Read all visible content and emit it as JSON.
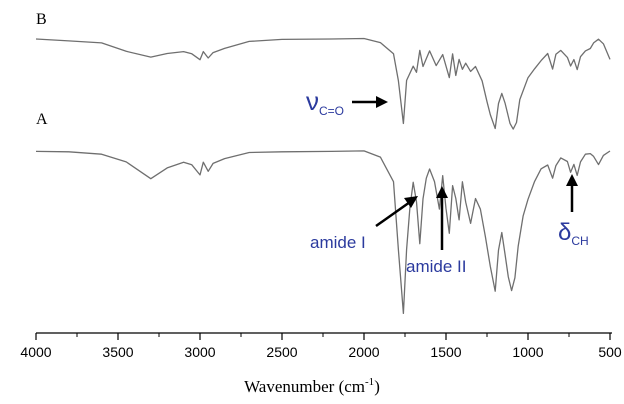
{
  "chart_data": {
    "type": "line",
    "xlabel": "Wavenumber (cm",
    "xlabel_sup": "-1",
    "xlabel_close": ")",
    "ylabel": "",
    "xlim": [
      4000,
      500
    ],
    "x_ticks": [
      4000,
      3500,
      3000,
      2500,
      2000,
      1500,
      1000,
      500
    ],
    "grid": false,
    "series": [
      {
        "name": "B",
        "points": [
          [
            4000,
            0.02
          ],
          [
            3800,
            0.03
          ],
          [
            3600,
            0.05
          ],
          [
            3450,
            0.1
          ],
          [
            3300,
            0.14
          ],
          [
            3200,
            0.12
          ],
          [
            3100,
            0.1
          ],
          [
            3050,
            0.12
          ],
          [
            3000,
            0.16
          ],
          [
            2980,
            0.1
          ],
          [
            2950,
            0.15
          ],
          [
            2920,
            0.11
          ],
          [
            2850,
            0.08
          ],
          [
            2700,
            0.04
          ],
          [
            2500,
            0.02
          ],
          [
            2200,
            0.02
          ],
          [
            2000,
            0.02
          ],
          [
            1900,
            0.04
          ],
          [
            1820,
            0.12
          ],
          [
            1790,
            0.3
          ],
          [
            1760,
            0.58
          ],
          [
            1740,
            0.3
          ],
          [
            1700,
            0.2
          ],
          [
            1680,
            0.24
          ],
          [
            1660,
            0.1
          ],
          [
            1640,
            0.2
          ],
          [
            1600,
            0.1
          ],
          [
            1560,
            0.2
          ],
          [
            1520,
            0.12
          ],
          [
            1480,
            0.28
          ],
          [
            1460,
            0.12
          ],
          [
            1440,
            0.26
          ],
          [
            1420,
            0.16
          ],
          [
            1400,
            0.22
          ],
          [
            1380,
            0.18
          ],
          [
            1350,
            0.24
          ],
          [
            1320,
            0.2
          ],
          [
            1280,
            0.3
          ],
          [
            1250,
            0.44
          ],
          [
            1230,
            0.52
          ],
          [
            1200,
            0.62
          ],
          [
            1180,
            0.45
          ],
          [
            1160,
            0.38
          ],
          [
            1140,
            0.45
          ],
          [
            1110,
            0.58
          ],
          [
            1090,
            0.62
          ],
          [
            1070,
            0.58
          ],
          [
            1050,
            0.42
          ],
          [
            1000,
            0.28
          ],
          [
            960,
            0.22
          ],
          [
            920,
            0.16
          ],
          [
            880,
            0.12
          ],
          [
            850,
            0.22
          ],
          [
            830,
            0.12
          ],
          [
            800,
            0.1
          ],
          [
            760,
            0.14
          ],
          [
            740,
            0.2
          ],
          [
            720,
            0.16
          ],
          [
            700,
            0.22
          ],
          [
            680,
            0.14
          ],
          [
            650,
            0.1
          ],
          [
            620,
            0.08
          ],
          [
            600,
            0.05
          ],
          [
            570,
            0.02
          ],
          [
            540,
            0.05
          ],
          [
            500,
            0.16
          ]
        ]
      },
      {
        "name": "A",
        "points": [
          [
            4000,
            0.02
          ],
          [
            3800,
            0.02
          ],
          [
            3600,
            0.04
          ],
          [
            3450,
            0.08
          ],
          [
            3300,
            0.18
          ],
          [
            3200,
            0.12
          ],
          [
            3100,
            0.08
          ],
          [
            3050,
            0.1
          ],
          [
            3000,
            0.16
          ],
          [
            2980,
            0.08
          ],
          [
            2950,
            0.14
          ],
          [
            2920,
            0.09
          ],
          [
            2850,
            0.06
          ],
          [
            2700,
            0.03
          ],
          [
            2500,
            0.02
          ],
          [
            2200,
            0.02
          ],
          [
            2000,
            0.02
          ],
          [
            1900,
            0.05
          ],
          [
            1820,
            0.2
          ],
          [
            1790,
            0.6
          ],
          [
            1760,
            0.97
          ],
          [
            1740,
            0.6
          ],
          [
            1720,
            0.35
          ],
          [
            1700,
            0.2
          ],
          [
            1680,
            0.32
          ],
          [
            1660,
            0.56
          ],
          [
            1640,
            0.3
          ],
          [
            1620,
            0.18
          ],
          [
            1600,
            0.12
          ],
          [
            1570,
            0.2
          ],
          [
            1540,
            0.36
          ],
          [
            1520,
            0.16
          ],
          [
            1500,
            0.36
          ],
          [
            1480,
            0.5
          ],
          [
            1460,
            0.22
          ],
          [
            1440,
            0.3
          ],
          [
            1420,
            0.42
          ],
          [
            1400,
            0.2
          ],
          [
            1380,
            0.32
          ],
          [
            1350,
            0.44
          ],
          [
            1320,
            0.3
          ],
          [
            1290,
            0.36
          ],
          [
            1260,
            0.52
          ],
          [
            1230,
            0.7
          ],
          [
            1200,
            0.84
          ],
          [
            1180,
            0.6
          ],
          [
            1160,
            0.5
          ],
          [
            1140,
            0.62
          ],
          [
            1120,
            0.76
          ],
          [
            1100,
            0.84
          ],
          [
            1080,
            0.76
          ],
          [
            1060,
            0.58
          ],
          [
            1030,
            0.4
          ],
          [
            1000,
            0.3
          ],
          [
            960,
            0.2
          ],
          [
            920,
            0.12
          ],
          [
            880,
            0.1
          ],
          [
            850,
            0.18
          ],
          [
            830,
            0.1
          ],
          [
            800,
            0.06
          ],
          [
            760,
            0.08
          ],
          [
            740,
            0.14
          ],
          [
            720,
            0.1
          ],
          [
            700,
            0.16
          ],
          [
            680,
            0.08
          ],
          [
            650,
            0.04
          ],
          [
            620,
            0.03
          ],
          [
            600,
            0.05
          ],
          [
            570,
            0.1
          ],
          [
            540,
            0.04
          ],
          [
            500,
            0.02
          ]
        ]
      }
    ],
    "annotations": [
      {
        "text": "ν",
        "sub": "C=O",
        "points_to_x": 1760,
        "points_to_series": "B"
      },
      {
        "text": "amide I",
        "points_to_x": 1660,
        "points_to_series": "A"
      },
      {
        "text": "amide II",
        "points_to_x": 1540,
        "points_to_series": "A"
      },
      {
        "text": "δ",
        "sub": "CH",
        "points_to_x": 720,
        "points_to_series": "A"
      }
    ]
  },
  "labels": {
    "series_b": "B",
    "series_a": "A",
    "nu": "ν",
    "nu_sub": "C=O",
    "amide1": "amide I",
    "amide2": "amide II",
    "delta": "δ",
    "delta_sub": "CH"
  },
  "colors": {
    "trace": "#6f6f6f",
    "annotation": "#2b3a9e",
    "axis": "#000000",
    "background": "#ffffff"
  }
}
